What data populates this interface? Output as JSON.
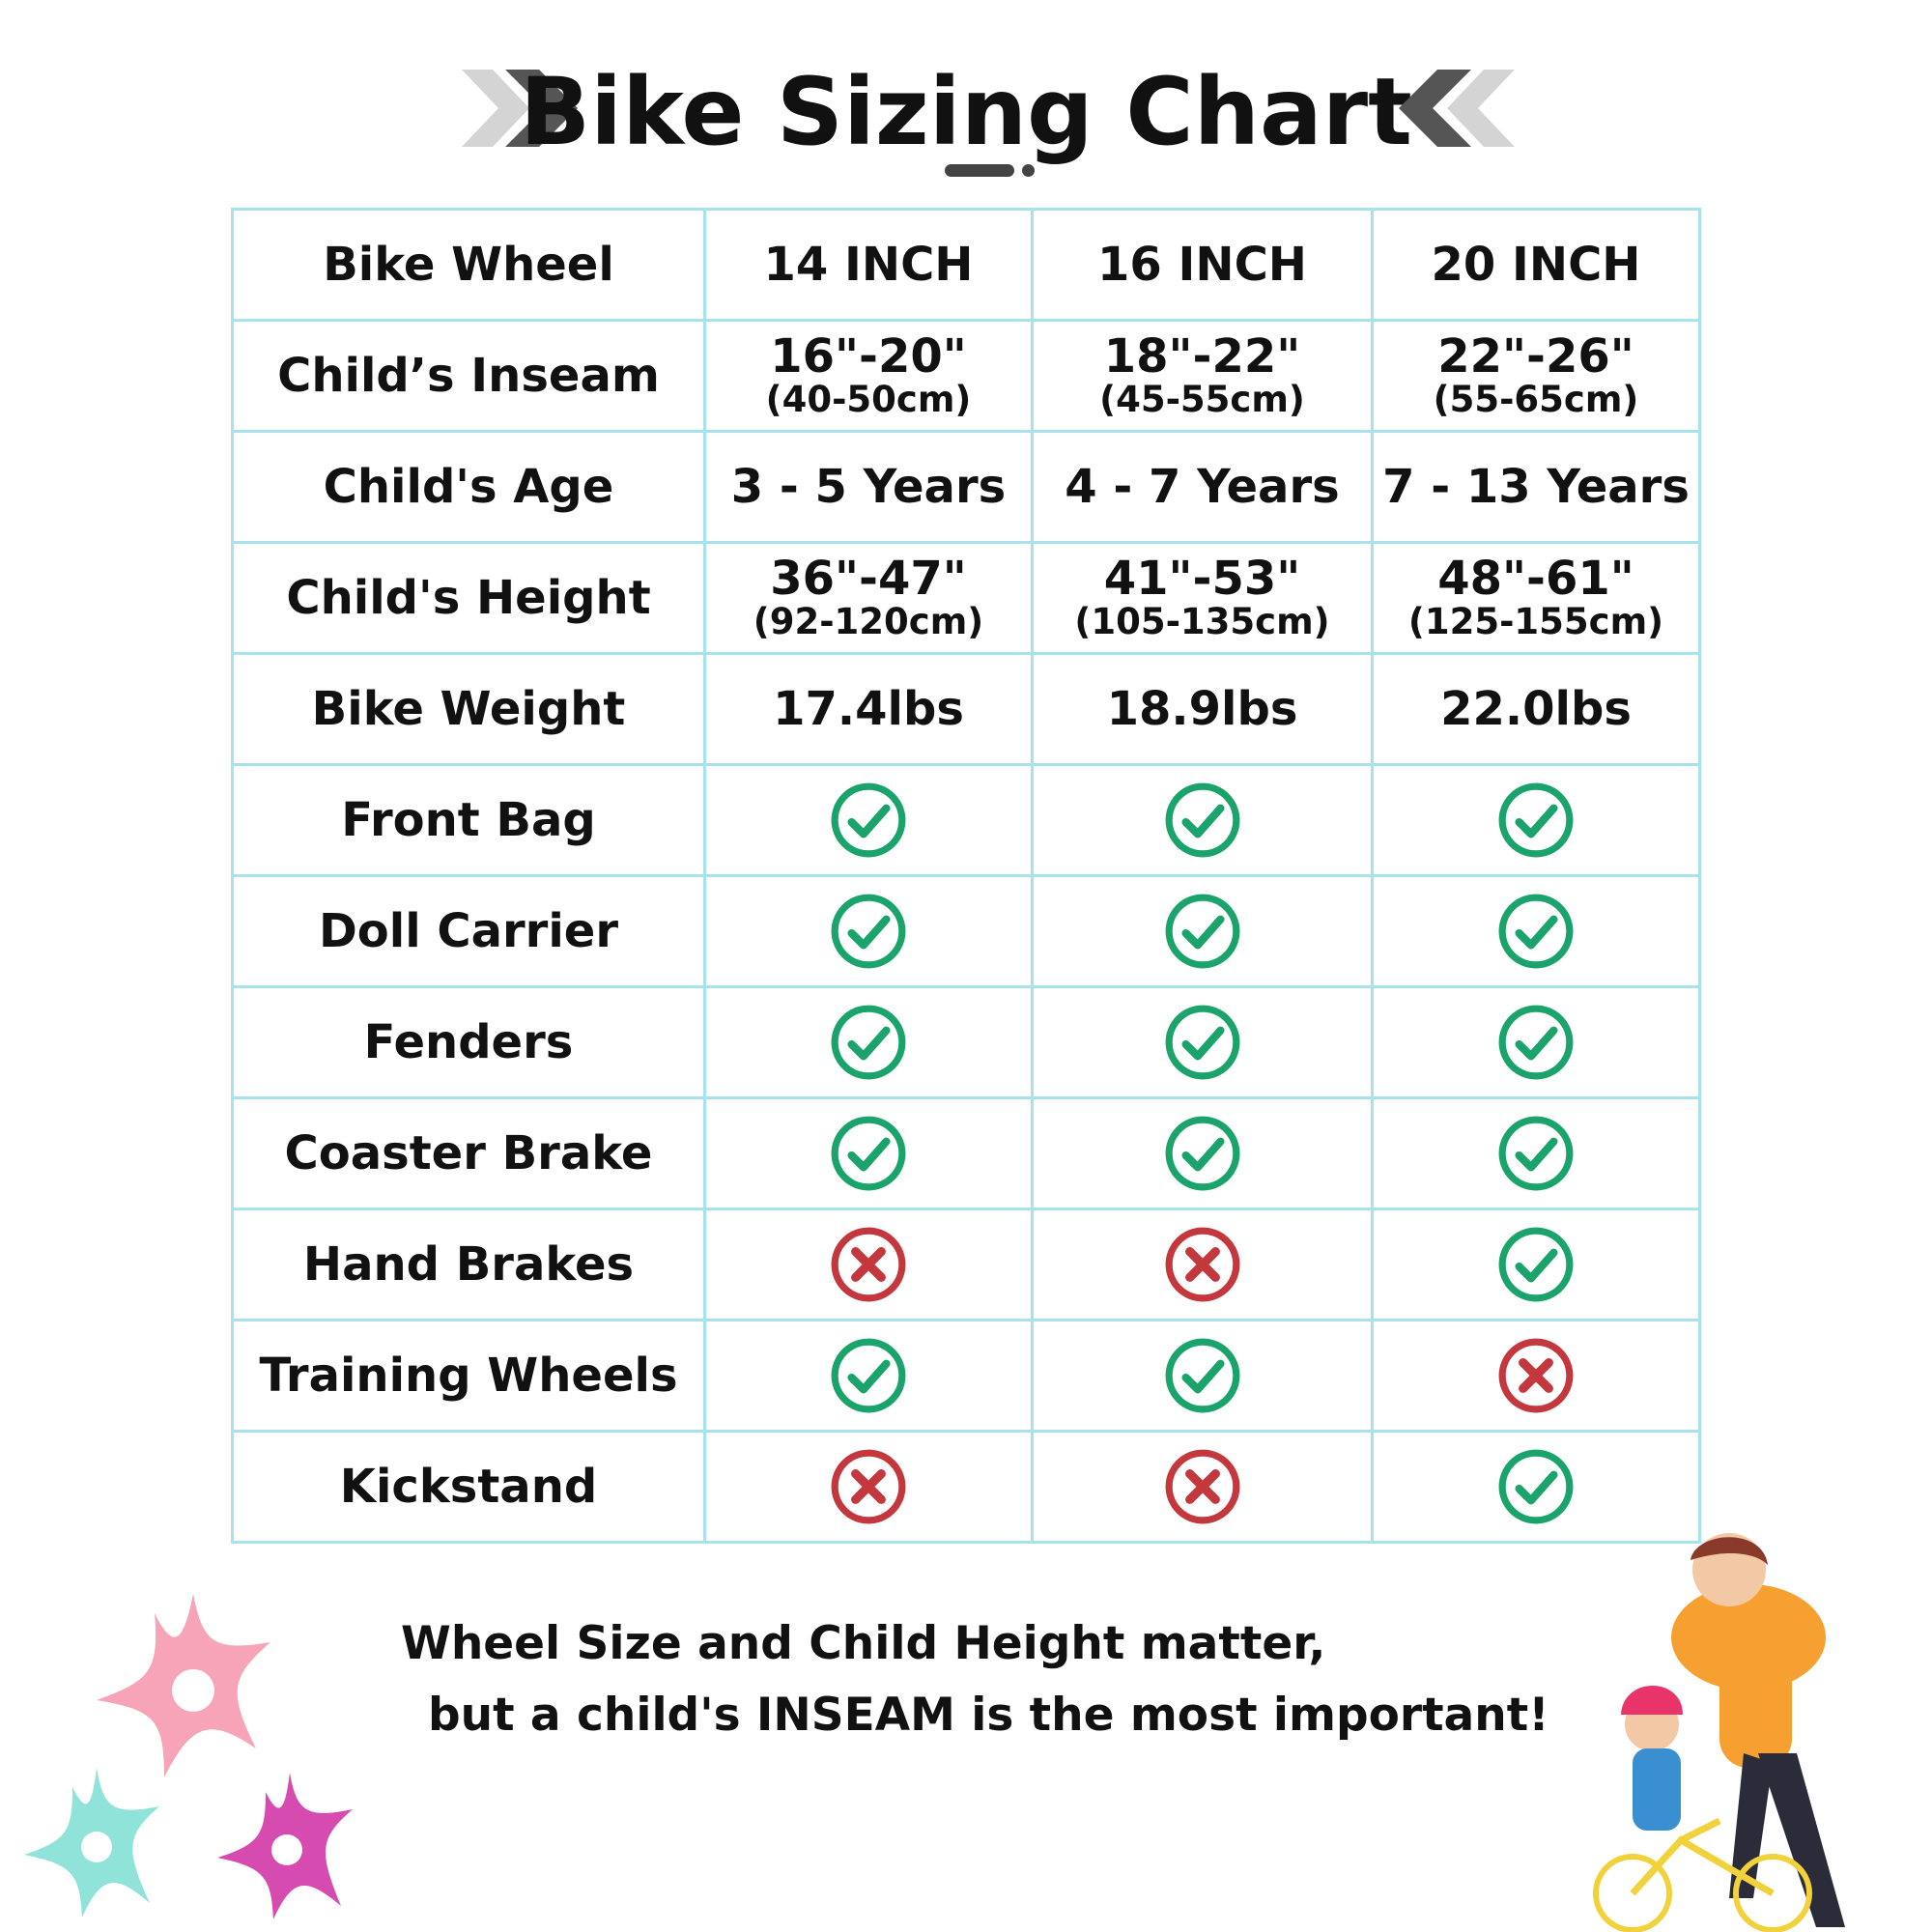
{
  "title": "Bike Sizing Chart",
  "colors": {
    "border": "#a7e3ec",
    "check": "#1aa36b",
    "cross": "#c4373c"
  },
  "icons": {
    "yes": "check-circle-icon",
    "no": "x-circle-icon"
  },
  "table": {
    "header": {
      "label": "Bike Wheel",
      "cols": [
        "14 INCH",
        "16 INCH",
        "20 INCH"
      ]
    },
    "rows": [
      {
        "label": "Child’s Inseam",
        "cells": [
          {
            "main": "16\"-20\"",
            "sub": "(40-50cm)"
          },
          {
            "main": "18\"-22\"",
            "sub": "(45-55cm)"
          },
          {
            "main": "22\"-26\"",
            "sub": "(55-65cm)"
          }
        ]
      },
      {
        "label": "Child's Age",
        "cells": [
          {
            "main": "3 - 5 Years"
          },
          {
            "main": "4 - 7 Years"
          },
          {
            "main": "7 - 13 Years"
          }
        ]
      },
      {
        "label": "Child's Height",
        "cells": [
          {
            "main": "36\"-47\"",
            "sub": "(92-120cm)"
          },
          {
            "main": "41\"-53\"",
            "sub": "(105-135cm)"
          },
          {
            "main": "48\"-61\"",
            "sub": "(125-155cm)"
          }
        ]
      },
      {
        "label": "Bike Weight",
        "cells": [
          {
            "main": "17.4lbs"
          },
          {
            "main": "18.9lbs"
          },
          {
            "main": "22.0lbs"
          }
        ]
      },
      {
        "label": "Front Bag",
        "cells": [
          {
            "icon": "yes"
          },
          {
            "icon": "yes"
          },
          {
            "icon": "yes"
          }
        ]
      },
      {
        "label": "Doll Carrier",
        "cells": [
          {
            "icon": "yes"
          },
          {
            "icon": "yes"
          },
          {
            "icon": "yes"
          }
        ]
      },
      {
        "label": "Fenders",
        "cells": [
          {
            "icon": "yes"
          },
          {
            "icon": "yes"
          },
          {
            "icon": "yes"
          }
        ]
      },
      {
        "label": "Coaster Brake",
        "cells": [
          {
            "icon": "yes"
          },
          {
            "icon": "yes"
          },
          {
            "icon": "yes"
          }
        ]
      },
      {
        "label": "Hand Brakes",
        "cells": [
          {
            "icon": "no"
          },
          {
            "icon": "no"
          },
          {
            "icon": "yes"
          }
        ]
      },
      {
        "label": "Training Wheels",
        "cells": [
          {
            "icon": "yes"
          },
          {
            "icon": "yes"
          },
          {
            "icon": "no"
          }
        ]
      },
      {
        "label": "Kickstand",
        "cells": [
          {
            "icon": "no"
          },
          {
            "icon": "no"
          },
          {
            "icon": "yes"
          }
        ]
      }
    ]
  },
  "footer": {
    "line1": "Wheel Size and Child Height matter,",
    "line2": "but a child's INSEAM is the most important!"
  }
}
